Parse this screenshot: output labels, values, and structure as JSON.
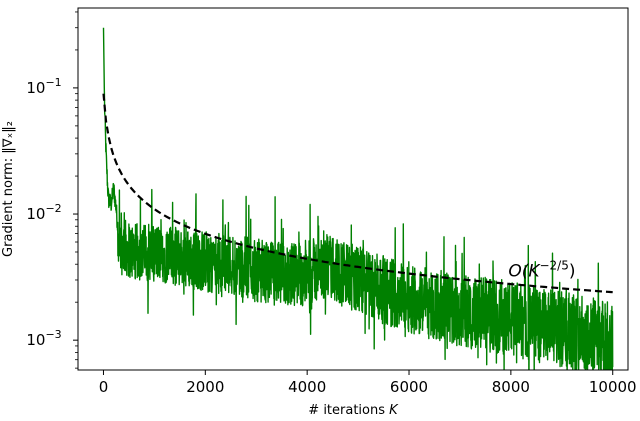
{
  "chart_data": {
    "type": "line",
    "xlabel_prefix": "# iterations ",
    "xlabel_var": "K",
    "ylabel": "Gradient norm: ‖∇ₓ‖₂",
    "xlim": [
      -500,
      10300
    ],
    "ylim": [
      0.00058,
      0.43
    ],
    "yscale": "log",
    "grid": false,
    "x_ticks": [
      0,
      2000,
      4000,
      6000,
      8000,
      10000
    ],
    "x_tick_labels": [
      "0",
      "2000",
      "4000",
      "6000",
      "8000",
      "10000"
    ],
    "y_ticks": [
      0.1,
      0.01,
      0.001
    ],
    "y_tick_labels": [
      {
        "base": "10",
        "exp": "−1"
      },
      {
        "base": "10",
        "exp": "−2"
      },
      {
        "base": "10",
        "exp": "−3"
      }
    ],
    "series": [
      {
        "style": "solid",
        "color": "#008000",
        "x": [
          0,
          20,
          40,
          60,
          80,
          100,
          150,
          200,
          250,
          300,
          350,
          400,
          500,
          600,
          800,
          1000,
          1200,
          1400,
          1600,
          1800,
          2000,
          2500,
          3000,
          3500,
          4000,
          4200,
          4400,
          4600,
          4800,
          5000,
          5500,
          6000,
          6500,
          7000,
          7500,
          8000,
          8500,
          9000,
          9500,
          10000
        ],
        "y": [
          0.3,
          0.08,
          0.04,
          0.025,
          0.017,
          0.013,
          0.012,
          0.016,
          0.011,
          0.0065,
          0.0055,
          0.0055,
          0.0052,
          0.005,
          0.005,
          0.005,
          0.0048,
          0.0046,
          0.0045,
          0.0043,
          0.0042,
          0.004,
          0.0036,
          0.0033,
          0.0034,
          0.0036,
          0.0038,
          0.0036,
          0.0032,
          0.003,
          0.0025,
          0.0022,
          0.0019,
          0.0017,
          0.0016,
          0.0015,
          0.0013,
          0.0012,
          0.0011,
          0.00095
        ]
      },
      {
        "style": "dashed",
        "color": "#000000",
        "x": [
          0,
          10000
        ],
        "y": [
          0.09,
          0.0024
        ]
      }
    ],
    "annotations": [
      {
        "text_base": "O(K",
        "text_exp": "−2/5",
        "text_close": ")",
        "x": 7950,
        "y": 0.0032
      }
    ]
  }
}
